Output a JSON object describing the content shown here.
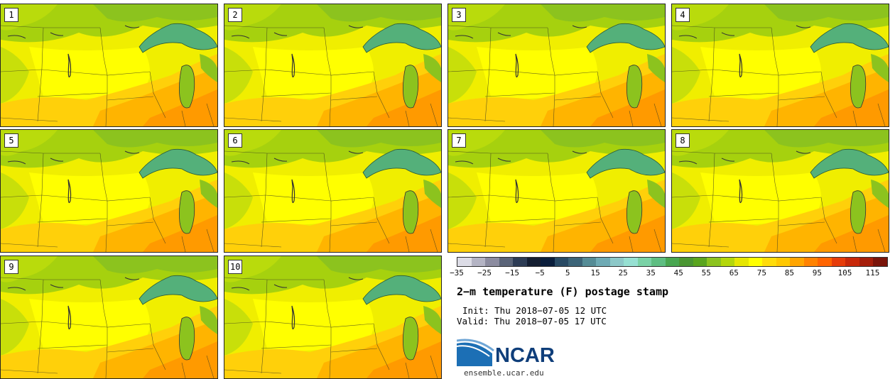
{
  "panels": [
    {
      "label": "1"
    },
    {
      "label": "2"
    },
    {
      "label": "3"
    },
    {
      "label": "4"
    },
    {
      "label": "5"
    },
    {
      "label": "6"
    },
    {
      "label": "7"
    },
    {
      "label": "8"
    },
    {
      "label": "9"
    },
    {
      "label": "10"
    }
  ],
  "colorbar": {
    "colors": [
      "#dcdce6",
      "#b4b4c4",
      "#8c8ca0",
      "#5a6478",
      "#2d3c55",
      "#141e32",
      "#0a1e3c",
      "#284a64",
      "#3c6478",
      "#558c96",
      "#6eaab4",
      "#8cc8c8",
      "#96e0d2",
      "#7ad2a6",
      "#5ebe82",
      "#48a650",
      "#4a9632",
      "#5aa51e",
      "#8cc31e",
      "#b4d70a",
      "#e6e600",
      "#ffff00",
      "#ffdc0a",
      "#ffc800",
      "#ffa500",
      "#ff8200",
      "#ff6400",
      "#e63c0a",
      "#c8280a",
      "#a51e0a",
      "#7a140a"
    ],
    "ticks": [
      "-35",
      "-25",
      "-15",
      "-5",
      "5",
      "15",
      "25",
      "35",
      "45",
      "55",
      "65",
      "75",
      "85",
      "95",
      "105",
      "115"
    ]
  },
  "title": "2-m temperature (F) postage stamp",
  "init": "Init: Thu 2018-07-05 12 UTC",
  "valid": "Valid: Thu 2018-07-05 17 UTC",
  "logo_text": "NCAR",
  "url": "ensemble.ucar.edu"
}
